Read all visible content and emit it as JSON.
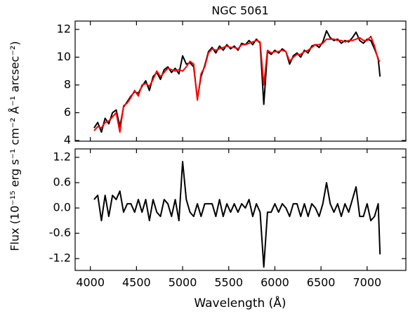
{
  "chart_data": [
    {
      "type": "line",
      "title": "NGC 5061",
      "ylabel": "Flux (10⁻¹⁵ erg s⁻¹ cm⁻² Å⁻¹ arcsec⁻²)",
      "x": [
        4040,
        4080,
        4120,
        4160,
        4200,
        4240,
        4280,
        4320,
        4360,
        4400,
        4440,
        4480,
        4520,
        4560,
        4600,
        4640,
        4680,
        4720,
        4760,
        4800,
        4840,
        4880,
        4920,
        4960,
        5000,
        5040,
        5080,
        5120,
        5160,
        5200,
        5240,
        5280,
        5320,
        5360,
        5400,
        5440,
        5480,
        5520,
        5560,
        5600,
        5640,
        5680,
        5720,
        5760,
        5800,
        5840,
        5880,
        5920,
        5960,
        6000,
        6040,
        6080,
        6120,
        6160,
        6200,
        6240,
        6280,
        6320,
        6360,
        6400,
        6440,
        6480,
        6520,
        6560,
        6600,
        6640,
        6680,
        6720,
        6760,
        6800,
        6840,
        6880,
        6920,
        6960,
        7000,
        7040,
        7080,
        7120,
        7140
      ],
      "series": [
        {
          "color": "#000000",
          "values": [
            4.9,
            5.3,
            4.6,
            5.6,
            5.2,
            6.0,
            6.2,
            5.0,
            6.4,
            6.8,
            7.2,
            7.5,
            7.4,
            7.9,
            8.3,
            7.6,
            8.6,
            8.9,
            8.4,
            9.1,
            9.3,
            8.9,
            9.2,
            8.8,
            10.1,
            9.5,
            9.6,
            9.3,
            7.0,
            8.6,
            9.4,
            10.4,
            10.7,
            10.3,
            10.8,
            10.5,
            10.9,
            10.6,
            10.8,
            10.5,
            11.0,
            10.9,
            11.2,
            10.9,
            11.3,
            11.0,
            6.6,
            10.4,
            10.2,
            10.5,
            10.3,
            10.6,
            10.4,
            9.5,
            10.1,
            10.3,
            10.0,
            10.5,
            10.3,
            10.8,
            10.9,
            10.7,
            11.1,
            11.9,
            11.4,
            11.2,
            11.3,
            11.0,
            11.2,
            11.1,
            11.4,
            11.8,
            11.2,
            11.0,
            11.3,
            11.2,
            10.6,
            9.9,
            8.6
          ]
        },
        {
          "color": "#ff0000",
          "values": [
            4.7,
            5.0,
            4.9,
            5.3,
            5.4,
            5.7,
            6.0,
            4.6,
            6.5,
            6.7,
            7.1,
            7.6,
            7.2,
            8.0,
            8.1,
            7.9,
            8.4,
            9.0,
            8.6,
            8.9,
            9.2,
            9.1,
            9.0,
            9.1,
            9.0,
            9.3,
            9.7,
            9.5,
            6.9,
            8.8,
            9.3,
            10.3,
            10.6,
            10.5,
            10.6,
            10.7,
            10.8,
            10.7,
            10.7,
            10.6,
            10.9,
            10.9,
            11.0,
            11.1,
            11.2,
            11.1,
            8.0,
            10.5,
            10.3,
            10.4,
            10.4,
            10.5,
            10.4,
            9.7,
            10.0,
            10.2,
            10.2,
            10.4,
            10.5,
            10.7,
            10.9,
            10.9,
            11.0,
            11.3,
            11.3,
            11.3,
            11.2,
            11.2,
            11.1,
            11.2,
            11.2,
            11.3,
            11.4,
            11.2,
            11.2,
            11.5,
            10.8,
            9.8,
            9.7
          ]
        }
      ],
      "xlim": [
        3835,
        7420
      ],
      "ylim": [
        3.95,
        12.6
      ],
      "xticks": [
        4000,
        4500,
        5000,
        5500,
        6000,
        6500,
        7000
      ],
      "yticks": [
        4,
        6,
        8,
        10,
        12
      ]
    },
    {
      "type": "line",
      "xlabel": "Wavelength (Å)",
      "x": [
        4040,
        4080,
        4120,
        4160,
        4200,
        4240,
        4280,
        4320,
        4360,
        4400,
        4440,
        4480,
        4520,
        4560,
        4600,
        4640,
        4680,
        4720,
        4760,
        4800,
        4840,
        4880,
        4920,
        4960,
        5000,
        5040,
        5080,
        5120,
        5160,
        5200,
        5240,
        5280,
        5320,
        5360,
        5400,
        5440,
        5480,
        5520,
        5560,
        5600,
        5640,
        5680,
        5720,
        5760,
        5800,
        5840,
        5880,
        5920,
        5960,
        6000,
        6040,
        6080,
        6120,
        6160,
        6200,
        6240,
        6280,
        6320,
        6360,
        6400,
        6440,
        6480,
        6520,
        6560,
        6600,
        6640,
        6680,
        6720,
        6760,
        6800,
        6840,
        6880,
        6920,
        6960,
        7000,
        7040,
        7080,
        7120,
        7140
      ],
      "series": [
        {
          "color": "#000000",
          "values": [
            0.2,
            0.3,
            -0.3,
            0.3,
            -0.2,
            0.3,
            0.2,
            0.4,
            -0.1,
            0.1,
            0.1,
            -0.1,
            0.2,
            -0.1,
            0.2,
            -0.3,
            0.2,
            -0.1,
            -0.2,
            0.2,
            0.1,
            -0.2,
            0.2,
            -0.3,
            1.1,
            0.2,
            -0.1,
            -0.2,
            0.1,
            -0.2,
            0.1,
            0.1,
            0.1,
            -0.2,
            0.2,
            -0.2,
            0.1,
            -0.1,
            0.1,
            -0.1,
            0.1,
            0.0,
            0.2,
            -0.2,
            0.1,
            -0.1,
            -1.4,
            -0.1,
            -0.1,
            0.1,
            -0.1,
            0.1,
            0.0,
            -0.2,
            0.1,
            0.1,
            -0.2,
            0.1,
            -0.2,
            0.1,
            0.0,
            -0.2,
            0.1,
            0.6,
            0.1,
            -0.1,
            0.1,
            -0.2,
            0.1,
            -0.1,
            0.2,
            0.5,
            -0.2,
            -0.2,
            0.1,
            -0.3,
            -0.2,
            0.1,
            -1.1
          ]
        }
      ],
      "xlim": [
        3835,
        7420
      ],
      "ylim": [
        -1.48,
        1.4
      ],
      "xticks": [
        4000,
        4500,
        5000,
        5500,
        6000,
        6500,
        7000
      ],
      "yticks": [
        -1.2,
        -0.6,
        {
          "value": 0,
          "label": "0.0"
        },
        0.6,
        1.2
      ]
    }
  ]
}
